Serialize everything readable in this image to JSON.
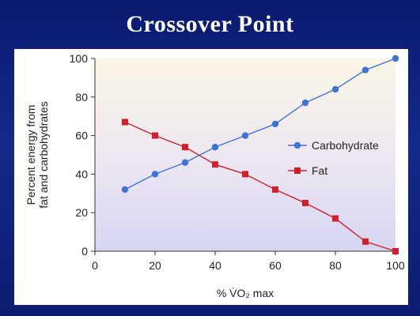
{
  "slide": {
    "title": "Crossover Point"
  },
  "colors": {
    "carbohydrate": "#3f73d6",
    "fat": "#d21f2c",
    "background": "#0f2280"
  },
  "chart_data": {
    "type": "line",
    "xlabel": "% V̇O₂ max",
    "ylabel_line1": "Percent energy from",
    "ylabel_line2": "fat and carbohydrates",
    "xlim": [
      0,
      100
    ],
    "ylim": [
      0,
      100
    ],
    "xticks": [
      "0",
      "20",
      "40",
      "60",
      "80",
      "100"
    ],
    "yticks": [
      "0",
      "20",
      "40",
      "60",
      "80",
      "100"
    ],
    "legend_position": "right",
    "series": [
      {
        "name": "Carbohydrate",
        "marker": "circle",
        "x": [
          10,
          20,
          30,
          40,
          50,
          60,
          70,
          80,
          90,
          100
        ],
        "values": [
          32,
          40,
          46,
          54,
          60,
          66,
          77,
          84,
          94,
          100
        ]
      },
      {
        "name": "Fat",
        "marker": "square",
        "x": [
          10,
          20,
          30,
          40,
          50,
          60,
          70,
          80,
          90,
          100
        ],
        "values": [
          67,
          60,
          54,
          45,
          40,
          32,
          25,
          17,
          5,
          0
        ]
      }
    ]
  }
}
